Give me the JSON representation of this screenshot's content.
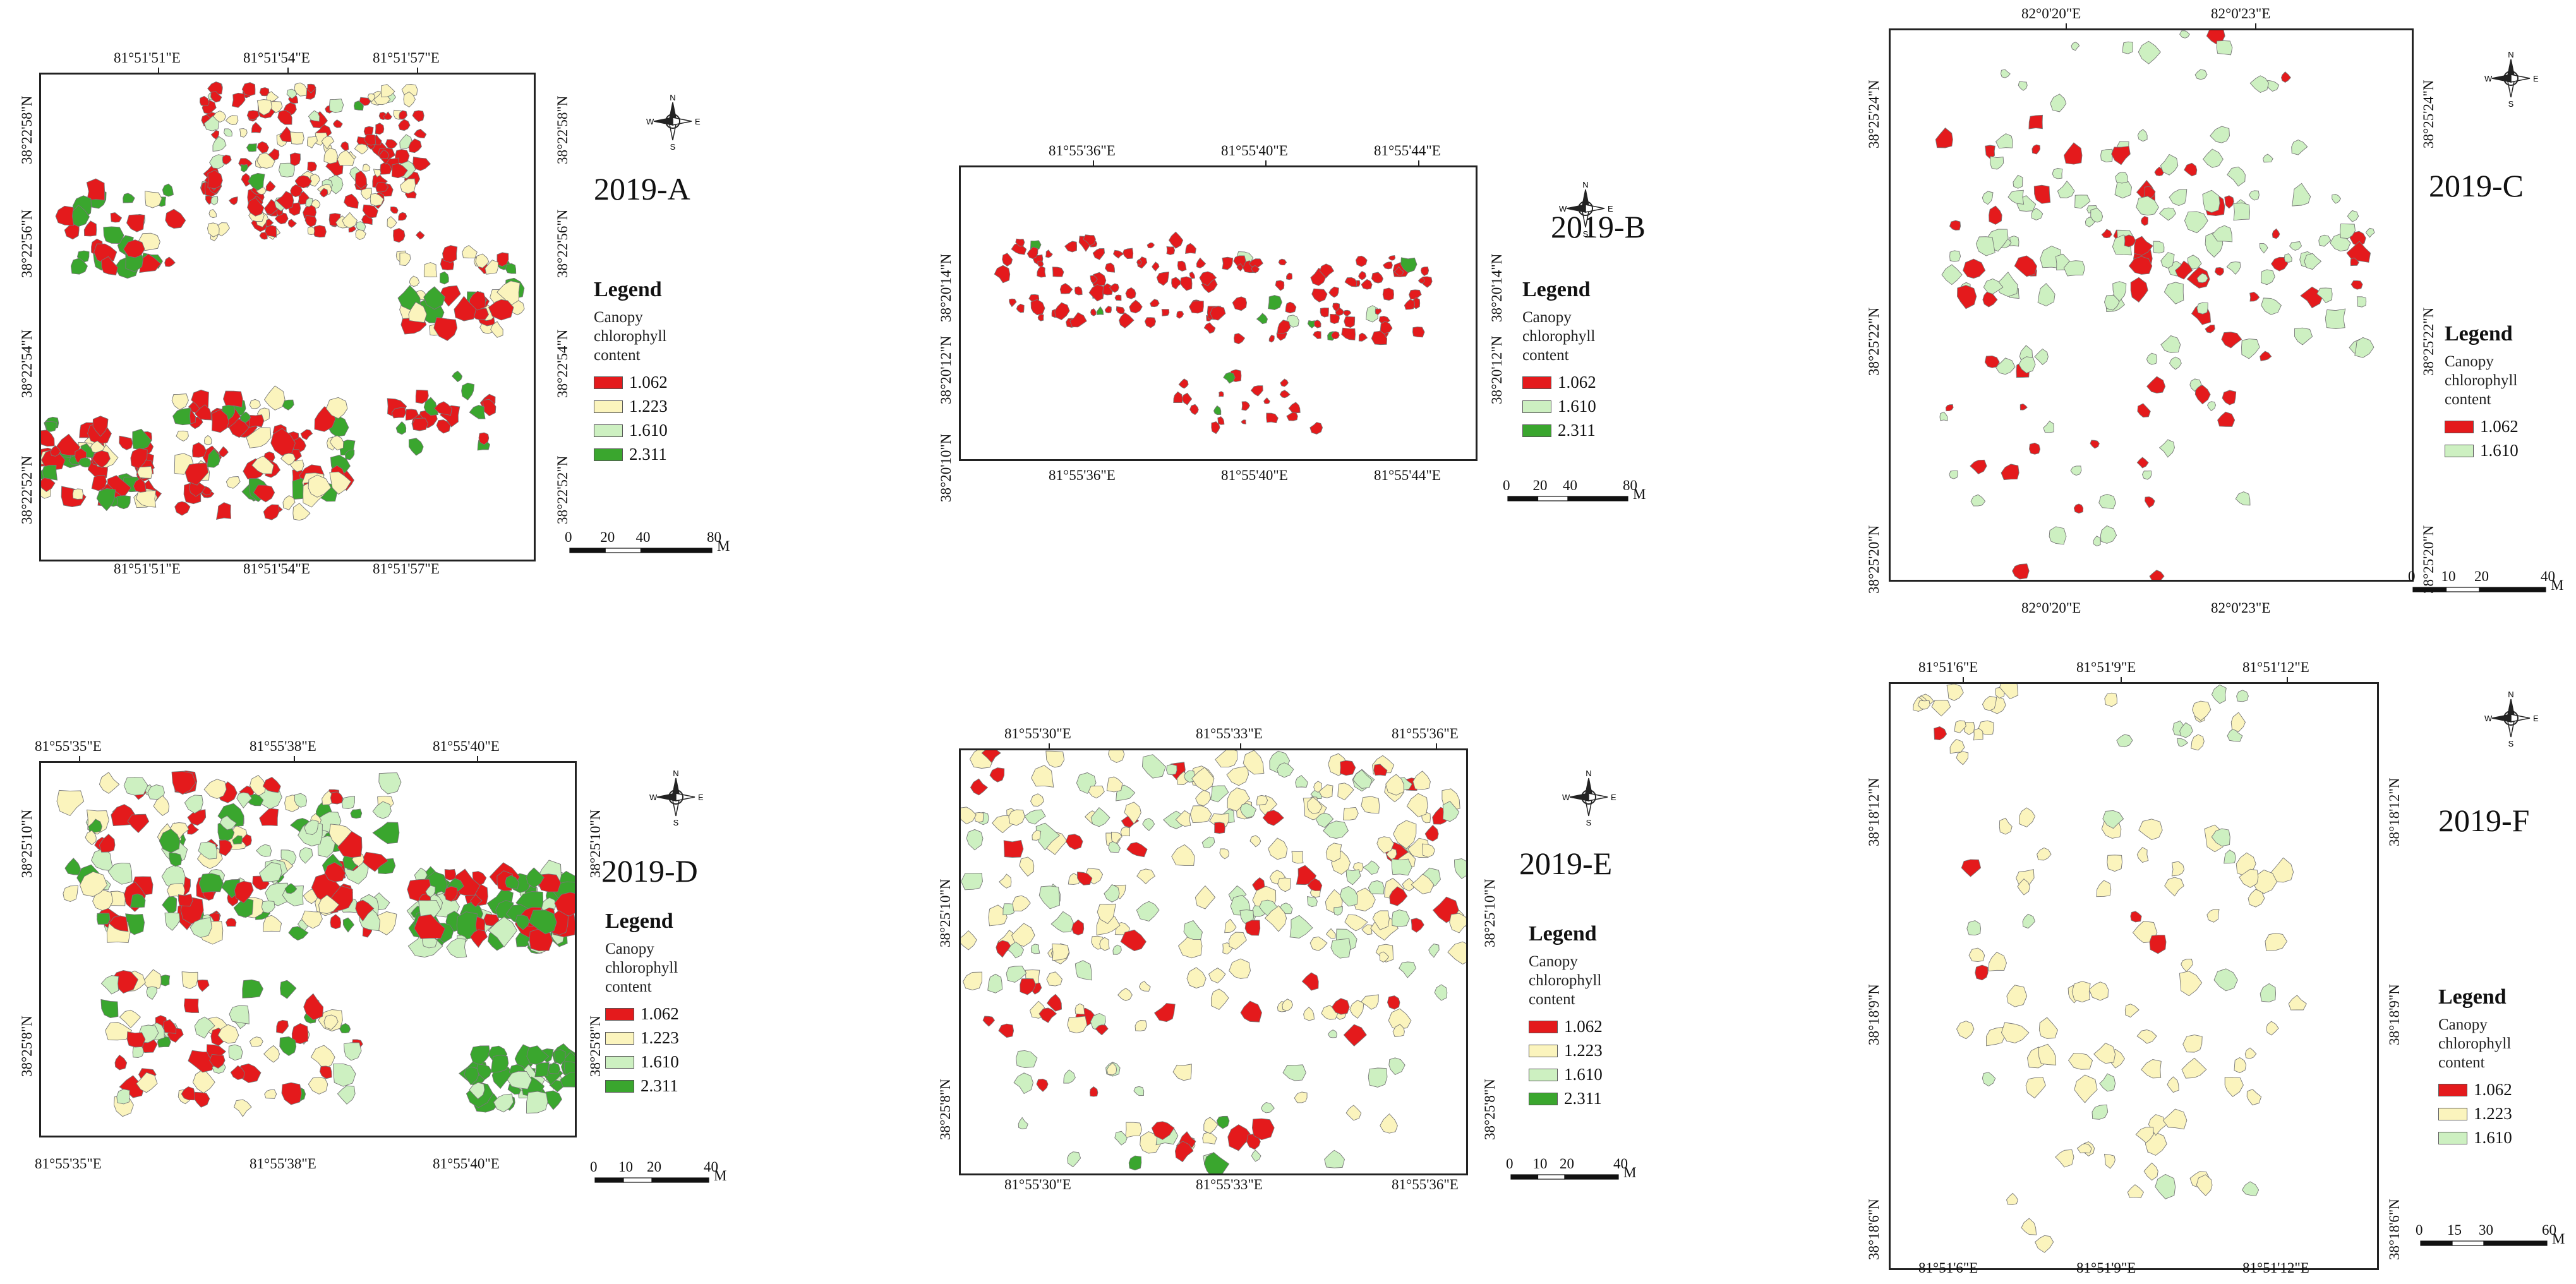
{
  "legend": {
    "title": "Legend",
    "line1": "Canopy",
    "line2": "chlorophyll",
    "line3": "content"
  },
  "compass": {
    "n": "N",
    "s": "S",
    "e": "E",
    "w": "W"
  },
  "classes": [
    {
      "value": "1.062",
      "color": "#e41a1c"
    },
    {
      "value": "1.223",
      "color": "#fbf4bd"
    },
    {
      "value": "1.610",
      "color": "#cdf0c1"
    },
    {
      "value": "2.311",
      "color": "#3aa62e"
    }
  ],
  "panels": [
    {
      "id": "A",
      "title": "2019-A",
      "top_labels": [
        "81°51'51\"E",
        "81°51'54\"E",
        "81°51'57\"E"
      ],
      "bottom_labels": [
        "81°51'51\"E",
        "81°51'54\"E",
        "81°51'57\"E"
      ],
      "left_labels": [
        "38°22'58\"N",
        "38°22'56\"N",
        "38°22'54\"N",
        "38°22'52\"N"
      ],
      "right_labels": [
        "38°22'58\"N",
        "38°22'56\"N",
        "38°22'54\"N",
        "38°22'52\"N"
      ],
      "legend_values": [
        "1.062",
        "1.223",
        "1.610",
        "2.311"
      ],
      "scale": [
        "0",
        "20",
        "40",
        "80"
      ],
      "scale_unit": "M"
    },
    {
      "id": "B",
      "title": "2019-B",
      "top_labels": [
        "81°55'36\"E",
        "81°55'40\"E",
        "81°55'44\"E"
      ],
      "bottom_labels": [
        "81°55'36\"E",
        "81°55'40\"E",
        "81°55'44\"E"
      ],
      "left_labels": [
        "38°20'14\"N",
        "38°20'12\"N",
        "38°20'10\"N"
      ],
      "right_labels": [
        "38°20'14\"N",
        "38°20'12\"N"
      ],
      "legend_values": [
        "1.062",
        "1.610",
        "2.311"
      ],
      "scale": [
        "0",
        "20",
        "40",
        "80"
      ],
      "scale_unit": "M"
    },
    {
      "id": "C",
      "title": "2019-C",
      "top_labels": [
        "82°0'20\"E",
        "82°0'23\"E"
      ],
      "bottom_labels": [
        "82°0'20\"E",
        "82°0'23\"E"
      ],
      "left_labels": [
        "38°25'24\"N",
        "38°25'22\"N",
        "38°25'20\"N"
      ],
      "right_labels": [
        "38°25'24\"N",
        "38°25'22\"N",
        "38°25'20\"N"
      ],
      "legend_values": [
        "1.062",
        "1.610"
      ],
      "scale": [
        "0",
        "10",
        "20",
        "40"
      ],
      "scale_unit": "M"
    },
    {
      "id": "D",
      "title": "2019-D",
      "top_labels": [
        "81°55'35\"E",
        "81°55'38\"E",
        "81°55'40\"E"
      ],
      "bottom_labels": [
        "81°55'35\"E",
        "81°55'38\"E",
        "81°55'40\"E"
      ],
      "left_labels": [
        "38°25'10\"N",
        "38°25'8\"N"
      ],
      "right_labels": [
        "38°25'10\"N",
        "38°25'8\"N"
      ],
      "legend_values": [
        "1.062",
        "1.223",
        "1.610",
        "2.311"
      ],
      "scale": [
        "0",
        "10",
        "20",
        "40"
      ],
      "scale_unit": "M"
    },
    {
      "id": "E",
      "title": "2019-E",
      "top_labels": [
        "81°55'30\"E",
        "81°55'33\"E",
        "81°55'36\"E"
      ],
      "bottom_labels": [
        "81°55'30\"E",
        "81°55'33\"E",
        "81°55'36\"E"
      ],
      "left_labels": [
        "38°25'10\"N",
        "38°25'8\"N"
      ],
      "right_labels": [
        "38°25'10\"N",
        "38°25'8\"N"
      ],
      "legend_values": [
        "1.062",
        "1.223",
        "1.610",
        "2.311"
      ],
      "scale": [
        "0",
        "10",
        "20",
        "40"
      ],
      "scale_unit": "M"
    },
    {
      "id": "F",
      "title": "2019-F",
      "top_labels": [
        "81°51'6\"E",
        "81°51'9\"E",
        "81°51'12\"E"
      ],
      "bottom_labels": [
        "81°51'6\"E",
        "81°51'9\"E",
        "81°51'12\"E"
      ],
      "left_labels": [
        "38°18'12\"N",
        "38°18'9\"N",
        "38°18'6\"N"
      ],
      "right_labels": [
        "38°18'12\"N",
        "38°18'9\"N",
        "38°18'6\"N"
      ],
      "legend_values": [
        "1.062",
        "1.223",
        "1.610"
      ],
      "scale": [
        "0",
        "15",
        "30",
        "60"
      ],
      "scale_unit": "M"
    }
  ]
}
